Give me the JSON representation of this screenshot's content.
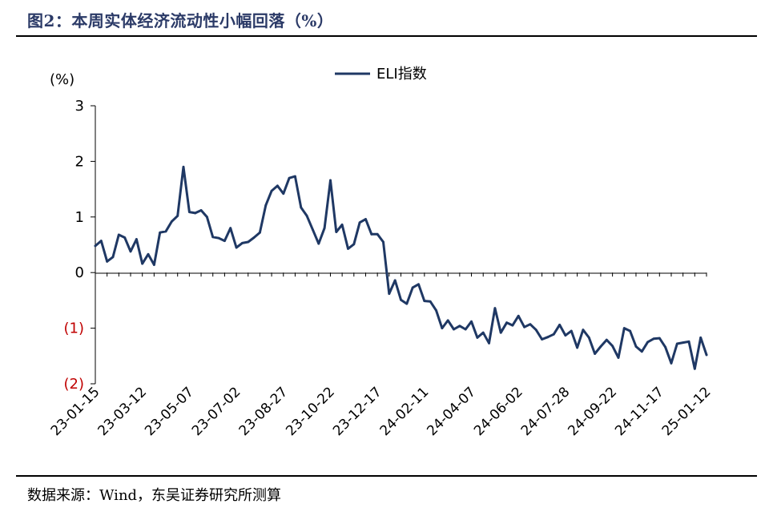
{
  "header": {
    "title": "图2：本周实体经济流动性小幅回落（%）"
  },
  "footer": {
    "source": "数据来源：Wind，东吴证券研究所测算"
  },
  "chart_data": {
    "type": "line",
    "unit_label": "(%)",
    "ylim": [
      -2,
      3
    ],
    "y_ticks": [
      {
        "value": 3,
        "label": "3"
      },
      {
        "value": 2,
        "label": "2"
      },
      {
        "value": 1,
        "label": "1"
      },
      {
        "value": 0,
        "label": "0"
      },
      {
        "value": -1,
        "label": "(1)"
      },
      {
        "value": -2,
        "label": "(2)"
      }
    ],
    "x_tick_labels": [
      "23-01-15",
      "23-03-12",
      "23-05-07",
      "23-07-02",
      "23-08-27",
      "23-10-22",
      "23-12-17",
      "24-02-11",
      "24-04-07",
      "24-06-02",
      "24-07-28",
      "24-09-22",
      "24-11-17",
      "25-01-12"
    ],
    "legend_position": "top-center",
    "grid": false,
    "colors": {
      "line": "#1f3864",
      "negative_tick": "#c00000"
    },
    "series": [
      {
        "name": "ELI指数",
        "values": [
          0.48,
          0.57,
          0.2,
          0.28,
          0.68,
          0.63,
          0.38,
          0.6,
          0.16,
          0.33,
          0.14,
          0.72,
          0.74,
          0.92,
          1.02,
          1.9,
          1.09,
          1.07,
          1.12,
          1.0,
          0.64,
          0.62,
          0.57,
          0.8,
          0.45,
          0.53,
          0.55,
          0.63,
          0.72,
          1.21,
          1.47,
          1.56,
          1.42,
          1.7,
          1.73,
          1.17,
          1.02,
          0.77,
          0.52,
          0.8,
          1.66,
          0.73,
          0.86,
          0.43,
          0.51,
          0.9,
          0.96,
          0.69,
          0.69,
          0.55,
          -0.38,
          -0.14,
          -0.49,
          -0.56,
          -0.27,
          -0.21,
          -0.51,
          -0.52,
          -0.68,
          -1.0,
          -0.86,
          -1.02,
          -0.96,
          -1.02,
          -0.88,
          -1.17,
          -1.08,
          -1.27,
          -0.64,
          -1.08,
          -0.9,
          -0.95,
          -0.78,
          -0.98,
          -0.93,
          -1.03,
          -1.2,
          -1.16,
          -1.11,
          -0.94,
          -1.13,
          -1.05,
          -1.35,
          -1.03,
          -1.17,
          -1.46,
          -1.33,
          -1.21,
          -1.32,
          -1.53,
          -1.0,
          -1.05,
          -1.33,
          -1.42,
          -1.25,
          -1.19,
          -1.18,
          -1.34,
          -1.63,
          -1.28,
          -1.26,
          -1.24,
          -1.73,
          -1.17,
          -1.48
        ]
      }
    ]
  }
}
